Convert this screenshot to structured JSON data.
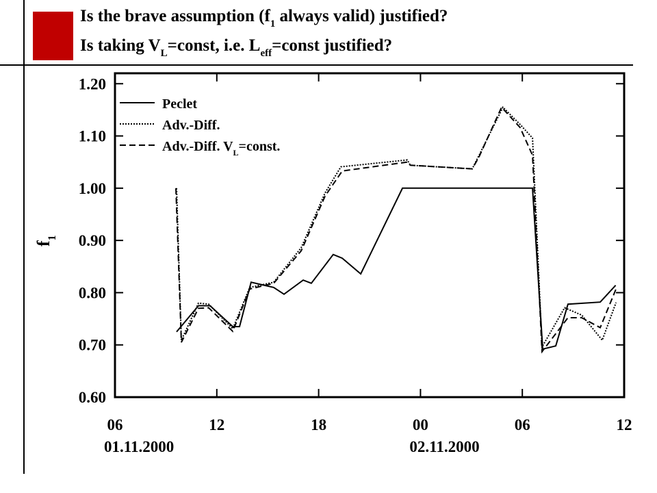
{
  "chart_data": {
    "type": "line",
    "title_lines": [
      [
        "Is the brave assumption (f",
        "1",
        " always valid) justified?"
      ],
      [
        "Is taking V",
        "L",
        "=const, i.e. L",
        "eff",
        "=const justified?"
      ]
    ],
    "y_label": [
      "f",
      "1"
    ],
    "xlim": [
      6,
      36
    ],
    "xticks": [
      {
        "value": 6,
        "label": "06"
      },
      12,
      18,
      {
        "value": 24,
        "label": "00"
      },
      {
        "value": 30,
        "label": "06"
      },
      {
        "value": 36,
        "label": "12"
      }
    ],
    "x_dates": [
      {
        "x": 6,
        "text": "01.11.2000"
      },
      {
        "x": 24,
        "text": "02.11.2000"
      }
    ],
    "ylim": [
      0.6,
      1.22
    ],
    "yticks": [
      {
        "value": 0.6,
        "label": "0.60"
      },
      {
        "value": 0.7,
        "label": "0.70"
      },
      {
        "value": 0.8,
        "label": "0.80"
      },
      {
        "value": 0.9,
        "label": "0.90"
      },
      {
        "value": 1.0,
        "label": "1.00"
      },
      {
        "value": 1.1,
        "label": "1.10"
      },
      {
        "value": 1.2,
        "label": "1.20"
      }
    ],
    "legend": "upper left",
    "series": [
      {
        "name": "Peclet",
        "color": "#000000",
        "dash": "solid",
        "x": [
          9.63,
          10.92,
          11.6,
          12.94,
          13.34,
          14.02,
          15.35,
          15.96,
          17.09,
          17.57,
          18.86,
          19.39,
          20.48,
          22.94,
          30.6,
          31.2,
          31.97,
          32.69,
          34.59,
          35.5
        ],
        "values": [
          0.725,
          0.775,
          0.775,
          0.735,
          0.735,
          0.82,
          0.81,
          0.797,
          0.824,
          0.818,
          0.873,
          0.866,
          0.836,
          1.0,
          1.0,
          0.692,
          0.698,
          0.778,
          0.782,
          0.814
        ]
      },
      {
        "name": "Adv.-Diff.",
        "color": "#000000",
        "dash": "dotted",
        "x": [
          9.63,
          9.91,
          10.92,
          11.52,
          12.94,
          13.94,
          15.35,
          16.97,
          18.38,
          19.31,
          23.22,
          23.4,
          27.05,
          27.45,
          28.86,
          29.87,
          30.6,
          31.16,
          32.49,
          33.5,
          34.71,
          35.52
        ],
        "values": [
          1.0,
          0.709,
          0.78,
          0.778,
          0.731,
          0.81,
          0.82,
          0.886,
          0.991,
          1.041,
          1.054,
          1.044,
          1.037,
          1.063,
          1.155,
          1.122,
          1.096,
          0.696,
          0.771,
          0.757,
          0.709,
          0.781
        ]
      },
      {
        "name": [
          "Adv.-Diff. V",
          "L",
          "=const."
        ],
        "color": "#000000",
        "dash": "dashed",
        "x": [
          9.59,
          9.91,
          10.92,
          11.52,
          12.94,
          13.94,
          15.35,
          16.97,
          18.38,
          19.39,
          23.22,
          23.4,
          27.05,
          27.45,
          28.78,
          29.87,
          30.6,
          31.16,
          32.69,
          33.5,
          34.59,
          35.52
        ],
        "values": [
          1.0,
          0.705,
          0.77,
          0.771,
          0.726,
          0.807,
          0.818,
          0.88,
          0.985,
          1.033,
          1.05,
          1.044,
          1.037,
          1.06,
          1.155,
          1.116,
          1.063,
          0.687,
          0.752,
          0.752,
          0.733,
          0.807
        ]
      }
    ]
  }
}
